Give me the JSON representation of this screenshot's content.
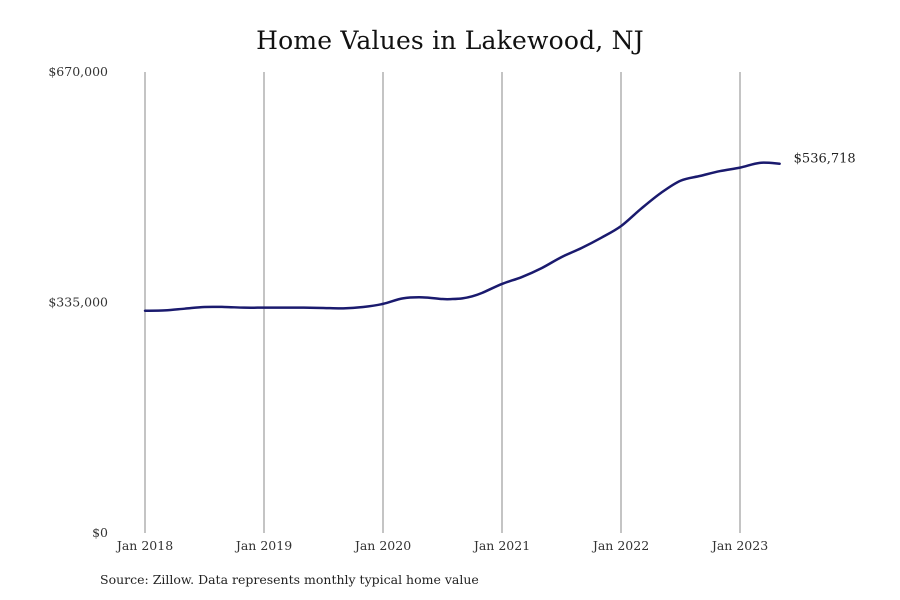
{
  "chart_data": {
    "type": "line",
    "title": "Home Values in Lakewood, NJ",
    "source": "Source: Zillow. Data represents monthly typical home value",
    "xlabel": "",
    "ylabel": "",
    "ylim": [
      0,
      670000
    ],
    "y_ticks": [
      {
        "value": 0,
        "label": "$0"
      },
      {
        "value": 335000,
        "label": "$335,000"
      },
      {
        "value": 670000,
        "label": "$670,000"
      }
    ],
    "x_ticks": [
      {
        "value": 0,
        "label": "Jan 2018"
      },
      {
        "value": 12,
        "label": "Jan 2019"
      },
      {
        "value": 24,
        "label": "Jan 2020"
      },
      {
        "value": 36,
        "label": "Jan 2021"
      },
      {
        "value": 48,
        "label": "Jan 2022"
      },
      {
        "value": 60,
        "label": "Jan 2023"
      }
    ],
    "grid": "vertical",
    "line_color": "#1a1a6e",
    "end_label": "$536,718",
    "series": [
      {
        "x": [
          0,
          2,
          4,
          6,
          8,
          10,
          12,
          14,
          16,
          18,
          20,
          22,
          24,
          26,
          28,
          30,
          31,
          32,
          33,
          34,
          36,
          38,
          40,
          42,
          44,
          46,
          48,
          50,
          52,
          54,
          56,
          58,
          60,
          62,
          64
        ],
        "values": [
          323000,
          323500,
          326000,
          328500,
          328500,
          327500,
          327500,
          327500,
          327500,
          327000,
          326500,
          328500,
          333000,
          341000,
          342500,
          340000,
          340000,
          341000,
          344000,
          349000,
          362000,
          372000,
          385000,
          401000,
          414000,
          429000,
          446000,
          471000,
          494000,
          512000,
          519000,
          526000,
          531000,
          538000,
          536718
        ]
      }
    ]
  }
}
